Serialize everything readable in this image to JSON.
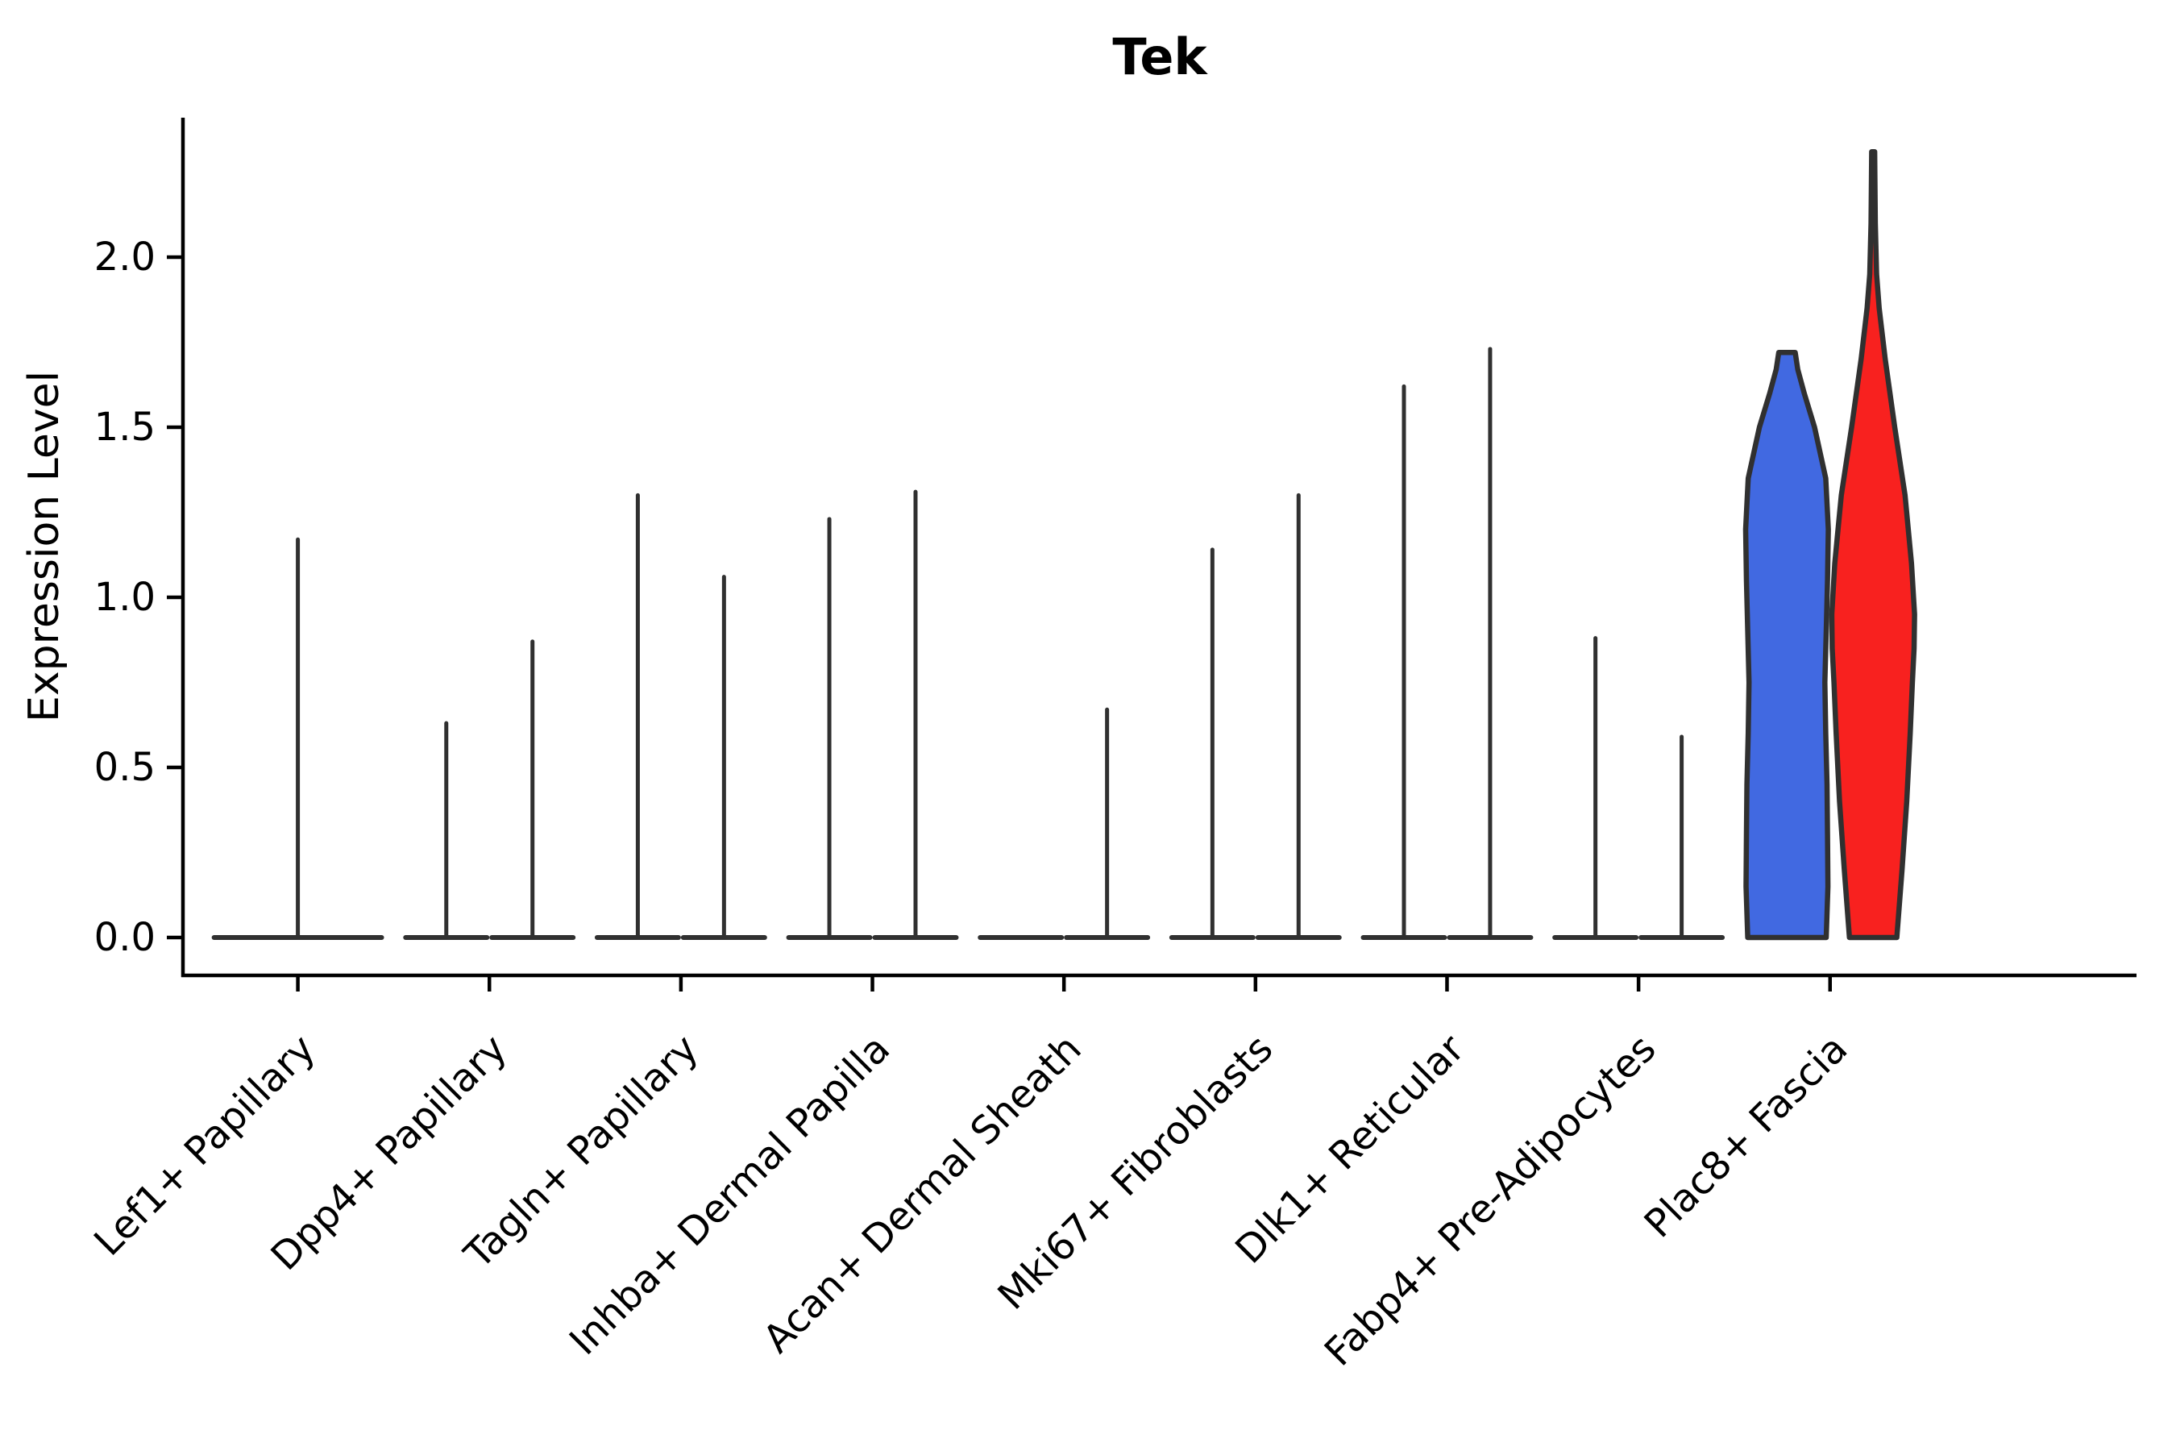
{
  "chart_data": {
    "type": "violin",
    "title": "Tek",
    "xlabel": "",
    "ylabel": "Expression Level",
    "ylim": [
      0,
      2.41
    ],
    "yticks": [
      0.0,
      0.5,
      1.0,
      1.5,
      2.0
    ],
    "grid": false,
    "legend": "none",
    "colors": {
      "outline": "#303030",
      "axis": "#000000",
      "group1_fill": "#4169E1",
      "group2_fill": "#F8211F"
    },
    "categories": [
      "Lef1+ Papillary",
      "Dpp4+ Papillary",
      "Tagln+ Papillary",
      "Inhba+ Dermal Papilla",
      "Acan+ Dermal Sheath",
      "Mki67+ Fibroblasts",
      "Dlk1+ Reticular",
      "Fabp4+ Pre-Adipocytes",
      "Plac8+ Fascia"
    ],
    "violins": [
      {
        "category": "Lef1+ Papillary",
        "items": [
          {
            "pos": "full",
            "shape": "spike",
            "max": 1.17
          }
        ]
      },
      {
        "category": "Dpp4+ Papillary",
        "items": [
          {
            "pos": "left",
            "shape": "spike",
            "max": 0.63
          },
          {
            "pos": "right",
            "shape": "spike",
            "max": 0.87
          }
        ]
      },
      {
        "category": "Tagln+ Papillary",
        "items": [
          {
            "pos": "left",
            "shape": "spike",
            "max": 1.3
          },
          {
            "pos": "right",
            "shape": "spike",
            "max": 1.06
          }
        ]
      },
      {
        "category": "Inhba+ Dermal Papilla",
        "items": [
          {
            "pos": "left",
            "shape": "spike",
            "max": 1.23
          },
          {
            "pos": "right",
            "shape": "spike",
            "max": 1.31
          }
        ]
      },
      {
        "category": "Acan+ Dermal Sheath",
        "items": [
          {
            "pos": "left",
            "shape": "spike",
            "max": 0.0
          },
          {
            "pos": "right",
            "shape": "spike",
            "max": 0.67
          }
        ]
      },
      {
        "category": "Mki67+ Fibroblasts",
        "items": [
          {
            "pos": "left",
            "shape": "spike",
            "max": 1.14
          },
          {
            "pos": "right",
            "shape": "spike",
            "max": 1.3
          }
        ]
      },
      {
        "category": "Dlk1+ Reticular",
        "items": [
          {
            "pos": "left",
            "shape": "spike",
            "max": 1.62
          },
          {
            "pos": "right",
            "shape": "spike",
            "max": 1.73
          }
        ]
      },
      {
        "category": "Fabp4+ Pre-Adipocytes",
        "items": [
          {
            "pos": "left",
            "shape": "spike",
            "max": 0.88
          },
          {
            "pos": "right",
            "shape": "spike",
            "max": 0.59
          }
        ]
      },
      {
        "category": "Plac8+ Fascia",
        "items": [
          {
            "pos": "left",
            "shape": "density",
            "max": 1.72,
            "fill": "group1_fill",
            "flat_top": true,
            "profile": [
              [
                0.0,
                0.91
              ],
              [
                0.15,
                0.95
              ],
              [
                0.3,
                0.94
              ],
              [
                0.45,
                0.93
              ],
              [
                0.6,
                0.9
              ],
              [
                0.75,
                0.88
              ],
              [
                0.9,
                0.91
              ],
              [
                1.05,
                0.94
              ],
              [
                1.2,
                0.96
              ],
              [
                1.35,
                0.9
              ],
              [
                1.5,
                0.64
              ],
              [
                1.6,
                0.4
              ],
              [
                1.67,
                0.25
              ],
              [
                1.72,
                0.19
              ]
            ]
          },
          {
            "pos": "right",
            "shape": "density",
            "max": 2.31,
            "fill": "group2_fill",
            "flat_top": false,
            "profile": [
              [
                0.0,
                0.55
              ],
              [
                0.2,
                0.67
              ],
              [
                0.4,
                0.78
              ],
              [
                0.6,
                0.86
              ],
              [
                0.75,
                0.91
              ],
              [
                0.85,
                0.95
              ],
              [
                0.95,
                0.96
              ],
              [
                1.1,
                0.89
              ],
              [
                1.3,
                0.74
              ],
              [
                1.5,
                0.5
              ],
              [
                1.7,
                0.28
              ],
              [
                1.85,
                0.14
              ],
              [
                1.95,
                0.08
              ],
              [
                2.1,
                0.05
              ],
              [
                2.31,
                0.035
              ]
            ]
          }
        ]
      }
    ]
  }
}
